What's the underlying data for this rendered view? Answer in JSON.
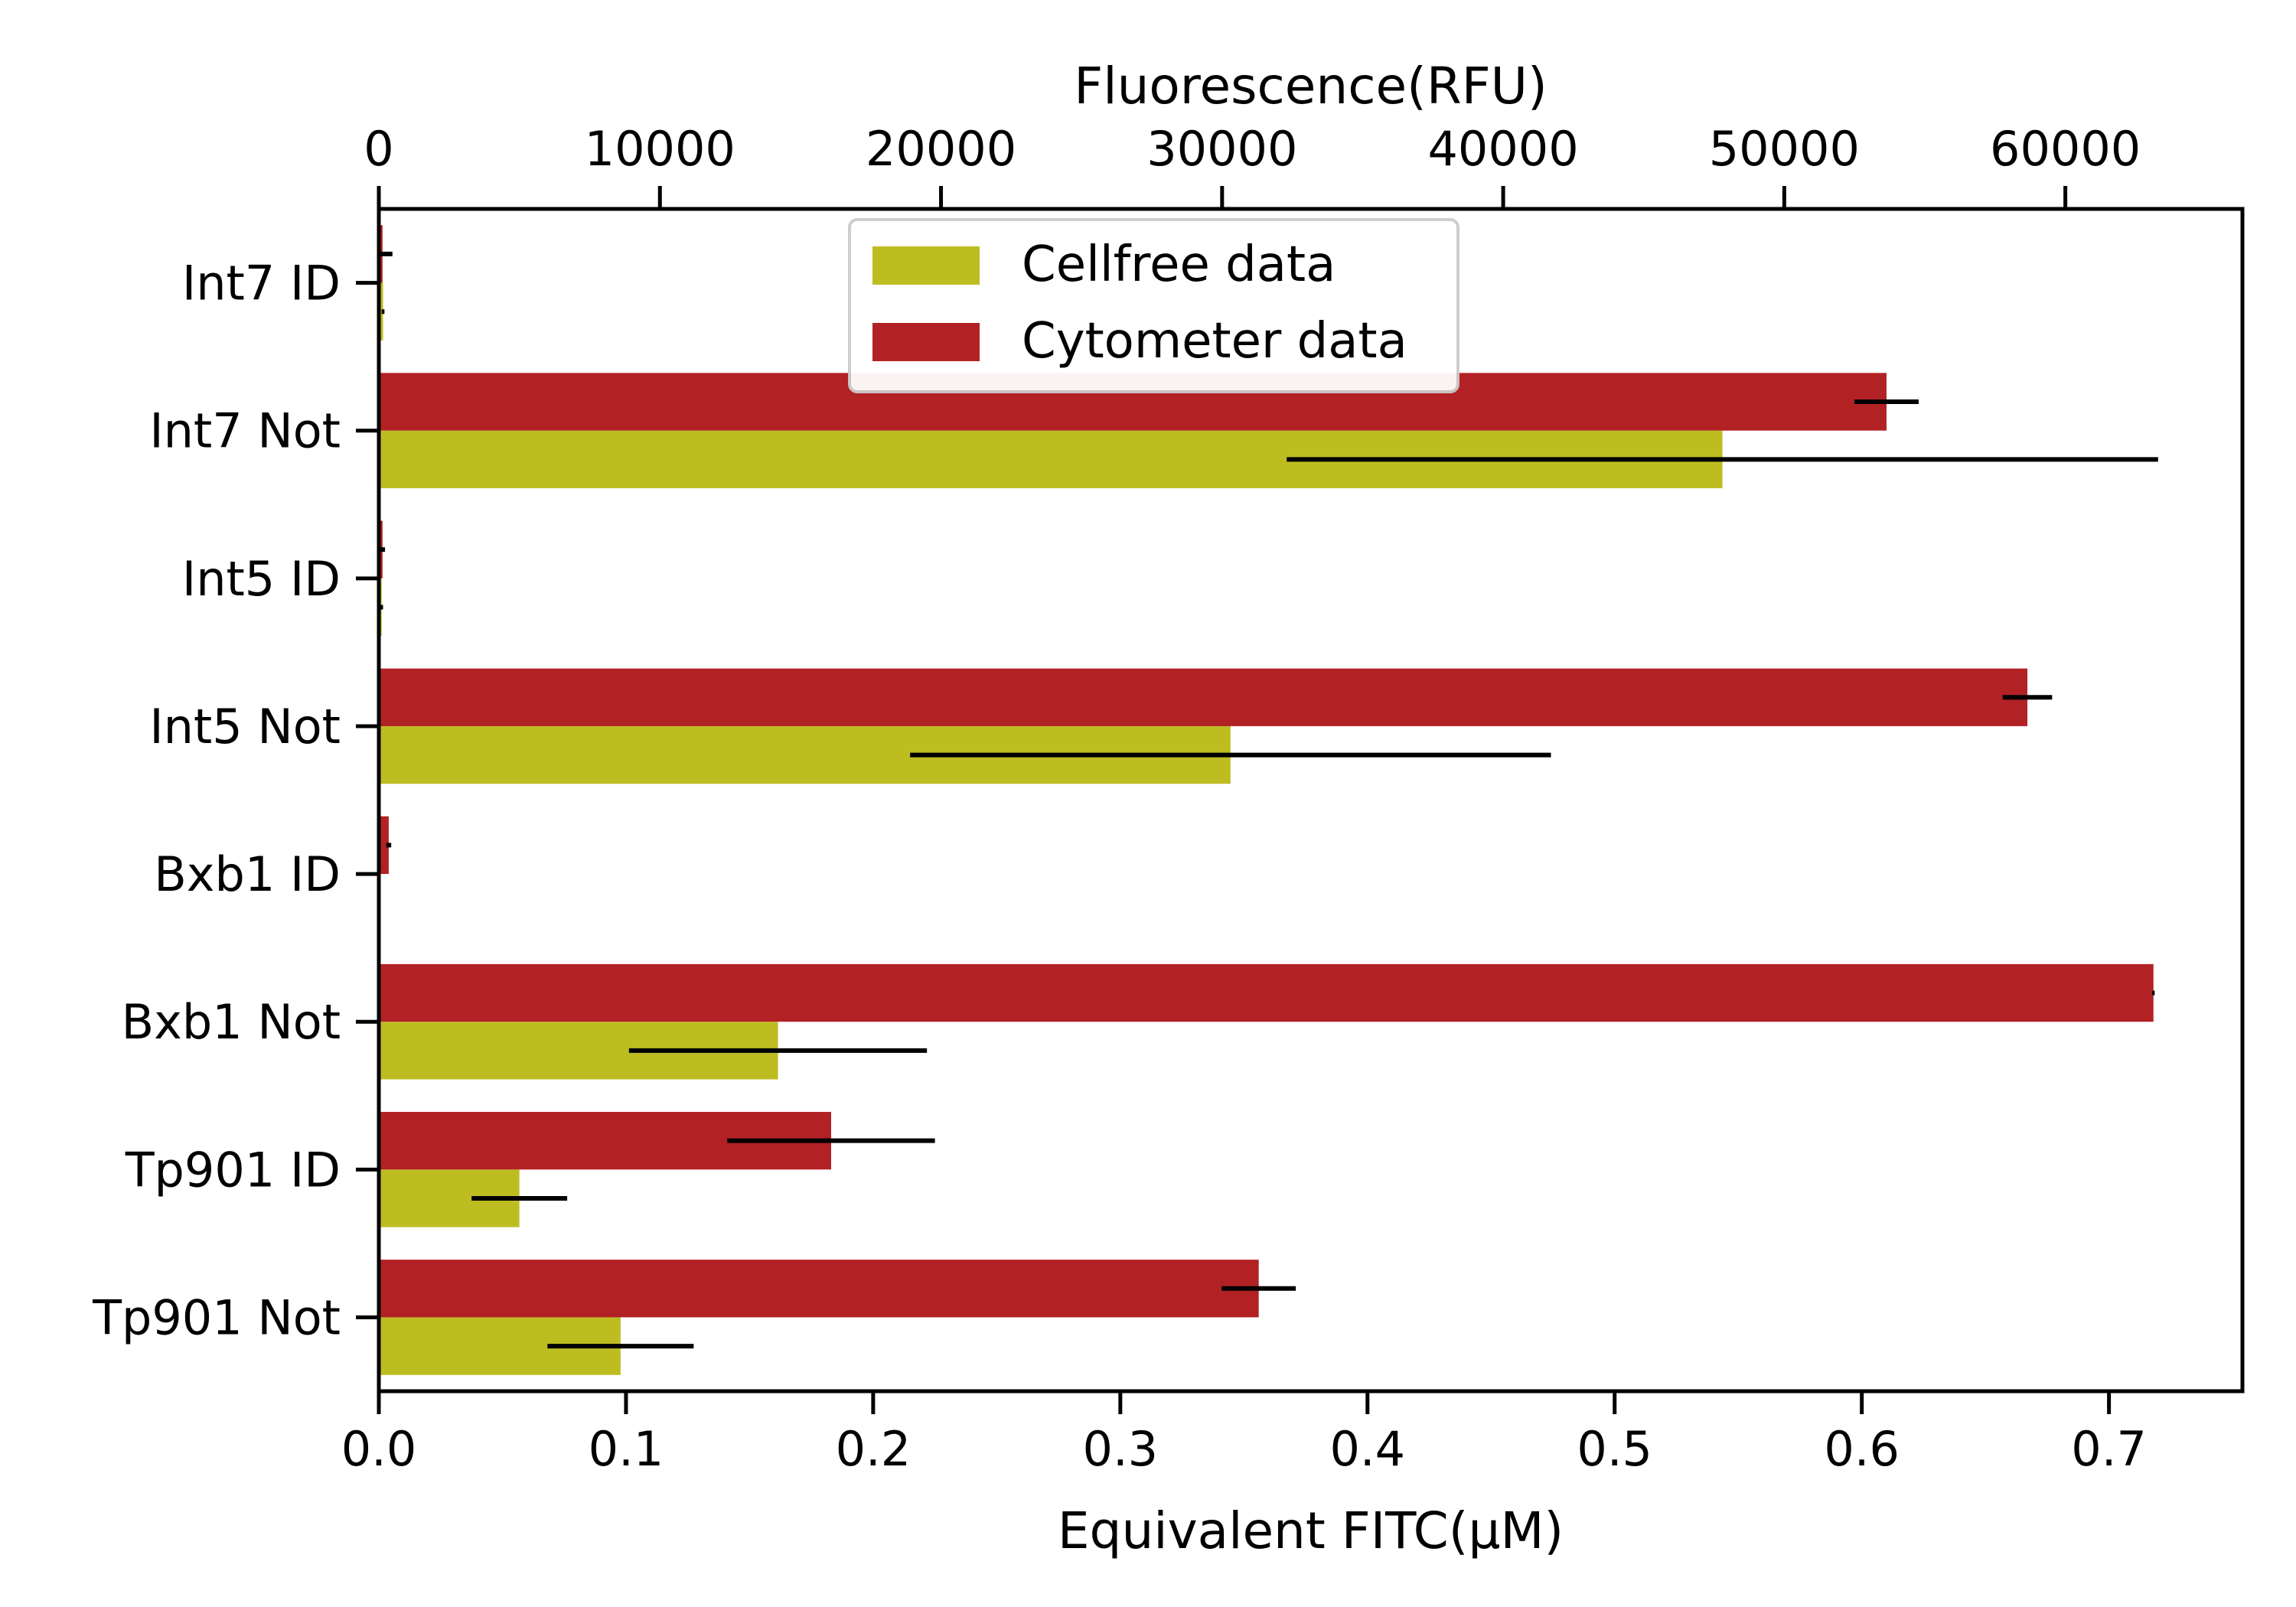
{
  "chart_data": {
    "type": "bar",
    "orientation": "horizontal",
    "categories": [
      "Int7 ID",
      "Int7 Not",
      "Int5 ID",
      "Int5 Not",
      "Bxb1 ID",
      "Bxb1 Not",
      "Tp901 ID",
      "Tp901 Not"
    ],
    "series": [
      {
        "name": "Cellfree data",
        "axis": "top",
        "color": "#bdbd22",
        "values": [
          150,
          47800,
          100,
          30300,
          0,
          14200,
          5000,
          8600
        ],
        "errors": [
          50,
          15500,
          50,
          11400,
          0,
          5300,
          1700,
          2600
        ]
      },
      {
        "name": "Cytometer data",
        "axis": "bottom",
        "color": "#b22124",
        "values": [
          0.0015,
          0.61,
          0.0015,
          0.667,
          0.004,
          0.718,
          0.183,
          0.356
        ],
        "errors": [
          0.004,
          0.013,
          0.001,
          0.01,
          0.001,
          0.0005,
          0.042,
          0.015
        ]
      }
    ],
    "xlabel": "Equivalent FITC(μM)",
    "xlim": [
      0,
      0.754
    ],
    "xticks": [
      0.0,
      0.1,
      0.2,
      0.3,
      0.4,
      0.5,
      0.6,
      0.7
    ],
    "xtick_labels": [
      "0.0",
      "0.1",
      "0.2",
      "0.3",
      "0.4",
      "0.5",
      "0.6",
      "0.7"
    ],
    "x2label": "Fluorescence(RFU)",
    "x2lim": [
      0,
      66300
    ],
    "x2ticks": [
      0,
      10000,
      20000,
      30000,
      40000,
      50000,
      60000
    ],
    "x2tick_labels": [
      "0",
      "10000",
      "20000",
      "30000",
      "40000",
      "50000",
      "60000"
    ],
    "grid": false,
    "legend_position": "top-center"
  }
}
